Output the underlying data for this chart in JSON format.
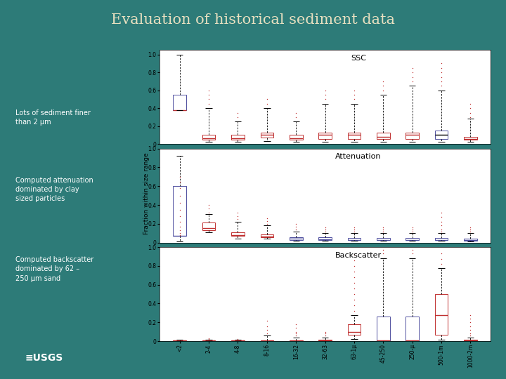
{
  "title": "Evaluation of historical sediment data",
  "title_color": "#e8e0c0",
  "background_color": "#2d7b78",
  "panel_bg": "#ffffff",
  "left_texts": [
    "Lots of sediment finer\nthan 2 μm",
    "Computed attenuation\ndominated by clay\nsized particles",
    "Computed backscatter\ndominated by 62 –\n250 μm sand"
  ],
  "subplot_titles": [
    "SSC",
    "Attenuation",
    "Backscatter"
  ],
  "ylabel": "Fraction within size range",
  "n_categories": 11,
  "x_tick_labels": [
    "<2",
    "2-4",
    "4-8",
    "8-16",
    "16-32",
    "32-63",
    "63-1μ",
    "45-250",
    "250-μ",
    "500-1m",
    "1000-2m"
  ],
  "ssc": {
    "medians": [
      0.38,
      0.065,
      0.065,
      0.1,
      0.065,
      0.1,
      0.1,
      0.08,
      0.1,
      0.1,
      0.055
    ],
    "q1": [
      0.38,
      0.045,
      0.045,
      0.07,
      0.045,
      0.055,
      0.055,
      0.055,
      0.055,
      0.055,
      0.045
    ],
    "q3": [
      0.55,
      0.1,
      0.1,
      0.13,
      0.1,
      0.13,
      0.13,
      0.13,
      0.13,
      0.15,
      0.08
    ],
    "whislo": [
      0.38,
      0.025,
      0.025,
      0.035,
      0.025,
      0.025,
      0.025,
      0.025,
      0.025,
      0.025,
      0.025
    ],
    "whishi": [
      1.0,
      0.4,
      0.25,
      0.4,
      0.25,
      0.45,
      0.45,
      0.55,
      0.65,
      0.6,
      0.28
    ],
    "fliers_y": [
      [],
      [
        0.45,
        0.5,
        0.55,
        0.6
      ],
      [
        0.3,
        0.35
      ],
      [
        0.45,
        0.5
      ],
      [
        0.3,
        0.35
      ],
      [
        0.5,
        0.55,
        0.6
      ],
      [
        0.5,
        0.55,
        0.6
      ],
      [
        0.6,
        0.65,
        0.7
      ],
      [
        0.7,
        0.75,
        0.8,
        0.85
      ],
      [
        0.65,
        0.7,
        0.75,
        0.8,
        0.85,
        0.9
      ],
      [
        0.3,
        0.35,
        0.4,
        0.45
      ]
    ],
    "box_color": [
      "#5050a0",
      "#c03030",
      "#c03030",
      "#c03030",
      "#c03030",
      "#c03030",
      "#c03030",
      "#c03030",
      "#c03030",
      "#5050a0",
      "#c03030"
    ],
    "median_color": [
      "#c03030",
      "#c03030",
      "#c03030",
      "#c03030",
      "#c03030",
      "#c03030",
      "#c03030",
      "#c03030",
      "#c03030",
      "#000000",
      "#c03030"
    ],
    "ylim": [
      0,
      1.05
    ],
    "yticks": [
      0,
      0.2,
      0.4,
      0.6,
      0.8,
      1.0
    ],
    "ytick_labels": [
      "0",
      "0.2",
      "0.4",
      "0.6",
      "0.8",
      "1.0"
    ]
  },
  "attenuation": {
    "medians": [
      0.07,
      0.155,
      0.08,
      0.065,
      0.04,
      0.035,
      0.03,
      0.03,
      0.03,
      0.03,
      0.025
    ],
    "q1": [
      0.07,
      0.13,
      0.07,
      0.06,
      0.03,
      0.028,
      0.025,
      0.025,
      0.025,
      0.025,
      0.02
    ],
    "q3": [
      0.6,
      0.21,
      0.11,
      0.09,
      0.06,
      0.055,
      0.05,
      0.05,
      0.05,
      0.05,
      0.045
    ],
    "whislo": [
      0.01,
      0.11,
      0.045,
      0.042,
      0.022,
      0.02,
      0.018,
      0.018,
      0.018,
      0.018,
      0.015
    ],
    "whishi": [
      0.92,
      0.3,
      0.22,
      0.18,
      0.12,
      0.1,
      0.1,
      0.1,
      0.1,
      0.1,
      0.1
    ],
    "fliers_y": [
      [
        0.08,
        0.1,
        0.13,
        0.17,
        0.22,
        0.28,
        0.35,
        0.42,
        0.5,
        0.58,
        0.65,
        0.7
      ],
      [
        0.32,
        0.36,
        0.4
      ],
      [
        0.25,
        0.28,
        0.32
      ],
      [
        0.2,
        0.23,
        0.26
      ],
      [
        0.14,
        0.17,
        0.2
      ],
      [
        0.12,
        0.14,
        0.16
      ],
      [
        0.12,
        0.14,
        0.16
      ],
      [
        0.12,
        0.14,
        0.16
      ],
      [
        0.12,
        0.14,
        0.16
      ],
      [
        0.12,
        0.14,
        0.18,
        0.22,
        0.27,
        0.32
      ],
      [
        0.12,
        0.14,
        0.16
      ]
    ],
    "box_color": [
      "#5050a0",
      "#c03030",
      "#c03030",
      "#c03030",
      "#5050a0",
      "#5050a0",
      "#5050a0",
      "#5050a0",
      "#5050a0",
      "#5050a0",
      "#5050a0"
    ],
    "median_color": [
      "#5050a0",
      "#c03030",
      "#c03030",
      "#c03030",
      "#5050a0",
      "#5050a0",
      "#5050a0",
      "#5050a0",
      "#5050a0",
      "#5050a0",
      "#5050a0"
    ],
    "ylim": [
      0,
      1.0
    ],
    "yticks": [
      0,
      0.2,
      0.4,
      0.6,
      0.8,
      1.0
    ],
    "ytick_labels": [
      "0",
      "0.2",
      "0.4",
      "0.6",
      "0.8",
      "1.0"
    ]
  },
  "backscatter": {
    "medians": [
      0.005,
      0.005,
      0.005,
      0.005,
      0.005,
      0.005,
      0.1,
      0.005,
      0.005,
      0.28,
      0.005
    ],
    "q1": [
      0.003,
      0.003,
      0.003,
      0.003,
      0.003,
      0.003,
      0.07,
      0.003,
      0.003,
      0.07,
      0.003
    ],
    "q3": [
      0.01,
      0.01,
      0.01,
      0.01,
      0.01,
      0.012,
      0.18,
      0.26,
      0.26,
      0.5,
      0.012
    ],
    "whislo": [
      0.001,
      0.001,
      0.001,
      0.001,
      0.001,
      0.001,
      0.025,
      0.001,
      0.001,
      0.015,
      0.001
    ],
    "whishi": [
      0.015,
      0.015,
      0.015,
      0.06,
      0.04,
      0.04,
      0.28,
      0.88,
      0.88,
      0.78,
      0.04
    ],
    "fliers_y": [
      [],
      [
        0.02,
        0.03
      ],
      [
        0.02
      ],
      [
        0.08,
        0.12,
        0.16,
        0.22
      ],
      [
        0.06,
        0.08,
        0.1,
        0.14,
        0.18
      ],
      [
        0.06,
        0.08,
        0.1
      ],
      [
        0.32,
        0.38,
        0.44,
        0.5,
        0.56,
        0.62,
        0.68,
        0.74,
        0.8,
        0.86,
        0.92
      ],
      [
        0.93,
        0.97
      ],
      [
        0.93,
        0.97
      ],
      [
        0.82,
        0.87,
        0.93
      ],
      [
        0.06,
        0.08,
        0.12,
        0.16,
        0.2,
        0.24,
        0.28
      ]
    ],
    "box_color": [
      "#c03030",
      "#c03030",
      "#c03030",
      "#c03030",
      "#c03030",
      "#c03030",
      "#c03030",
      "#5050a0",
      "#5050a0",
      "#c03030",
      "#c03030"
    ],
    "median_color": [
      "#c03030",
      "#c03030",
      "#c03030",
      "#c03030",
      "#c03030",
      "#c03030",
      "#c03030",
      "#c03030",
      "#c03030",
      "#c03030",
      "#c03030"
    ],
    "ylim": [
      0,
      1.0
    ],
    "yticks": [
      0,
      0.2,
      0.4,
      0.6,
      0.8,
      1.0
    ],
    "ytick_labels": [
      "0",
      "0.2",
      "0.4",
      "0.6",
      "0.8",
      "1.0"
    ]
  }
}
